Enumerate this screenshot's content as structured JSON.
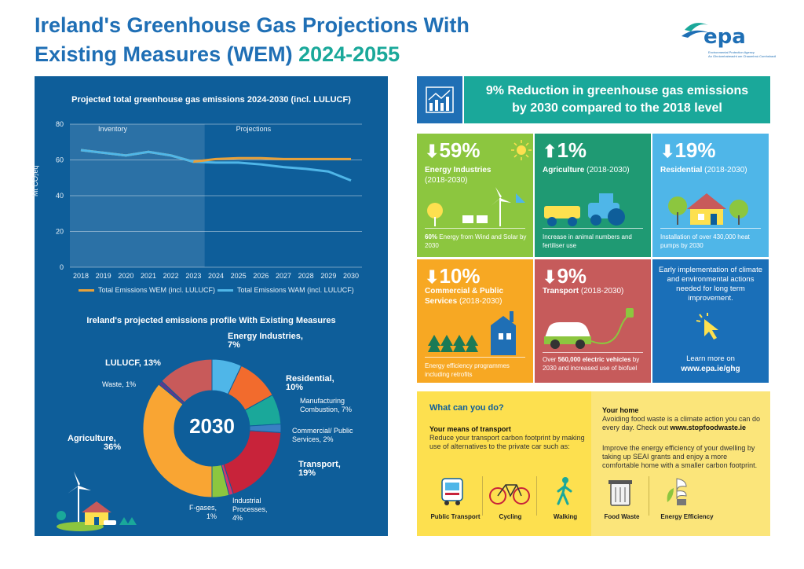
{
  "header": {
    "title_line1": "Ireland's Greenhouse Gas Projections With",
    "title_line2": "Existing Measures (WEM)",
    "title_years": "2024-2055",
    "logo_text": "epa",
    "logo_sub1": "Environmental Protection Agency",
    "logo_sub2": "An Ghníomhaireacht um Chaomhnú Comhshaoil"
  },
  "colors": {
    "blue": "#1f6fb5",
    "teal": "#1aa89a",
    "panel": "#0e5e9a",
    "orange": "#e8a13a",
    "lightblue": "#4fb6e8"
  },
  "line_chart": {
    "title": "Projected total greenhouse gas emissions 2024-2030 (incl. LULUCF)",
    "ylabel": "Mt CO₂eq",
    "inventory_label": "Inventory",
    "projections_label": "Projections",
    "legend_wem": "Total Emissions WEM (incl. LULUCF)",
    "legend_wam": "Total Emissions WAM (incl. LULUCF)"
  },
  "chart_data": [
    {
      "type": "line",
      "title": "Projected total greenhouse gas emissions 2024-2030 (incl. LULUCF)",
      "xlabel": "",
      "ylabel": "Mt CO₂eq",
      "x": [
        "2018",
        "2019",
        "2020",
        "2021",
        "2022",
        "2023",
        "2024",
        "2025",
        "2026",
        "2027",
        "2028",
        "2029",
        "2030"
      ],
      "y_ticks": [
        0,
        20,
        40,
        60,
        80
      ],
      "ylim": [
        0,
        80
      ],
      "series": [
        {
          "name": "Total Emissions WEM (incl. LULUCF)",
          "color": "#e8a13a",
          "values": [
            65.5,
            64,
            62.5,
            64.5,
            62.5,
            59,
            60.5,
            61,
            61,
            60.5,
            60.5,
            60.5,
            60.5
          ]
        },
        {
          "name": "Total Emissions WAM (incl. LULUCF)",
          "color": "#4fb6e8",
          "values": [
            65.5,
            64,
            62.5,
            64.5,
            62.5,
            59,
            58.5,
            58.5,
            57.5,
            56,
            55,
            53.5,
            48.5
          ]
        }
      ]
    },
    {
      "type": "pie",
      "title": "Ireland's projected emissions profile With Existing Measures",
      "center_label": "2030",
      "slices": [
        {
          "name": "Energy Industries",
          "value": 7,
          "color": "#4fb6e8"
        },
        {
          "name": "Residential",
          "value": 10,
          "color": "#f26b2d"
        },
        {
          "name": "Manufacturing Combustion",
          "value": 7,
          "color": "#1aa89a"
        },
        {
          "name": "Commercial/ Public Services",
          "value": 2,
          "color": "#3a7fc3"
        },
        {
          "name": "Transport",
          "value": 19,
          "color": "#c8233a"
        },
        {
          "name": "F-gases",
          "value": 1,
          "color": "#d4356e"
        },
        {
          "name": "Industrial Processes",
          "value": 4,
          "color": "#8cc63f"
        },
        {
          "name": "Agriculture",
          "value": 36,
          "color": "#f9a533"
        },
        {
          "name": "Waste",
          "value": 1,
          "color": "#5b3a8c"
        },
        {
          "name": "LULUCF",
          "value": 13,
          "color": "#c85a5a"
        }
      ]
    }
  ],
  "pie_labels": {
    "title": "Ireland's projected emissions profile With Existing Measures",
    "center": "2030",
    "energy": "Energy Industries,",
    "energy_pct": "7%",
    "residential": "Residential,",
    "residential_pct": "10%",
    "manufacturing": "Manufacturing Combustion, 7%",
    "commercial": "Commercial/ Public Services, 2%",
    "transport": "Transport,",
    "transport_pct": "19%",
    "industrial": "Industrial Processes, 4%",
    "fgases": "F-gases, 1%",
    "agriculture": "Agriculture,",
    "agriculture_pct": "36%",
    "waste": "Waste, 1%",
    "lulucf": "LULUCF, 13%"
  },
  "reduction_header": {
    "line1": "9% Reduction in greenhouse gas emissions",
    "line2": "by 2030 compared to the 2018 level"
  },
  "tiles": {
    "energy": {
      "pct": "59%",
      "name": "Energy Industries",
      "period": "(2018-2030)",
      "cap_bold": "60%",
      "cap": " Energy from Wind and Solar by 2030"
    },
    "agriculture": {
      "pct": "1%",
      "name": "Agriculture",
      "period": "(2018-2030)",
      "cap": "Increase in animal numbers and fertiliser use"
    },
    "residential": {
      "pct": "19%",
      "name": "Residential",
      "period": "(2018-2030)",
      "cap": "Installation of over 430,000 heat pumps by 2030"
    },
    "commercial": {
      "pct": "10%",
      "name": "Commercial & Public Services",
      "period": "(2018-2030)",
      "cap": "Energy efficiency programmes including retrofits"
    },
    "transport": {
      "pct": "9%",
      "name": "Transport",
      "period": "(2018-2030)",
      "cap_pre": "Over ",
      "cap_bold": "560,000 electric vehicles",
      "cap": " by 2030 and increased use of biofuel"
    },
    "info": {
      "text": "Early implementation of climate and environmental actions needed for long term improvement.",
      "learn": "Learn more on",
      "url": "www.epa.ie/ghg"
    }
  },
  "what_can_you_do": {
    "title": "What can you do?",
    "transport_head": "Your means of transport",
    "transport_text": "Reduce your transport carbon footprint by making use of alternatives to the private car such as:",
    "home_head": "Your home",
    "home_text1_pre": "Avoiding food waste is a climate action you can do every day. Check out ",
    "home_text1_link": "www.stopfoodwaste.ie",
    "home_text2": "Improve the energy efficiency of your dwelling by taking up SEAI grants and enjoy a more comfortable home with a smaller carbon footprint.",
    "icons": [
      "Public Transport",
      "Cycling",
      "Walking",
      "Food Waste",
      "Energy Efficiency"
    ]
  }
}
